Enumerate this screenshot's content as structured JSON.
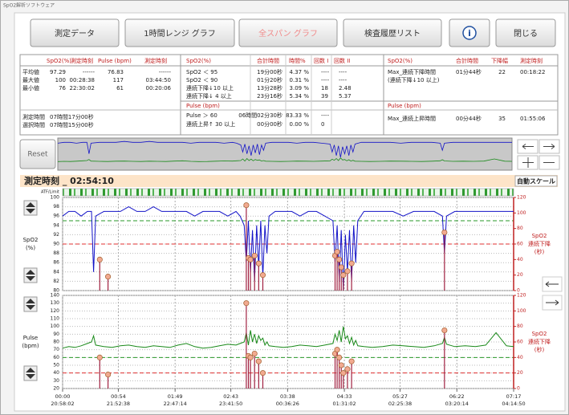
{
  "window_title": "SpO2解析ソフトウェア",
  "toolbar": {
    "buttons": [
      "測定データ",
      "1時間レンジ グラフ",
      "全スパン グラフ",
      "検査履歴リスト",
      "i",
      "閉じる"
    ],
    "active": 2
  },
  "summary": {
    "left": {
      "headers": [
        "SpO2(%)",
        "測定時刻",
        "Pulse (bpm)",
        "測定時刻"
      ],
      "rows": [
        [
          "平均値",
          "97.29",
          "------",
          "76.83",
          "------"
        ],
        [
          "最大値",
          "100",
          "00:28:38",
          "117",
          "03:44:50"
        ],
        [
          "最小値",
          "76",
          "22:30:02",
          "61",
          "00:20:06"
        ]
      ],
      "duration_rows": [
        [
          "測定時間",
          "07時間17分00秒"
        ],
        [
          "選択時間",
          "07時間15分00秒"
        ]
      ]
    },
    "middle": {
      "headers": [
        "SpO2(%)",
        "合計時間",
        "時間%",
        "回数 I",
        "回数 II"
      ],
      "rows": [
        [
          "SpO2 ＜ 95",
          "19分00秒",
          "4.37 %",
          "----",
          "----"
        ],
        [
          "SpO2 ＜ 90",
          "01分20秒",
          "0.31 %",
          "----",
          "----"
        ],
        [
          "連続下降↓10 以上",
          "13分28秒",
          "3.09 %",
          "18",
          "2.48"
        ],
        [
          "連続下降↓ 4 以上",
          "23分16秒",
          "5.34 %",
          "39",
          "5.37"
        ]
      ],
      "pulse_header": "Pulse (bpm)",
      "pulse_rows": [
        [
          "Pulse ＞ 60",
          "06時間02分30秒",
          "83.33 %",
          "----"
        ],
        [
          "連続上昇↑ 30 以上",
          "00分00秒",
          "0.00 %",
          "0"
        ]
      ]
    },
    "right": {
      "headers": [
        "SpO2(%)",
        "合計時間",
        "下降幅",
        "測定時刻"
      ],
      "rows": [
        [
          "Max_連続下降時間",
          "01分44秒",
          "22",
          "00:18:22"
        ]
      ],
      "note": "(連続下降↓10 以上)",
      "pulse_header": "Pulse (bpm)",
      "pulse_rows": [
        [
          "Max_連続上昇時間",
          "00分44秒",
          "35",
          "01:55:06"
        ]
      ]
    }
  },
  "reset": "Reset",
  "cursor_time": "測定時刻 _ 02:54:10",
  "auto_scale": "自動スケール",
  "atf_label": "ATF/Limit",
  "x_axis": {
    "xlim": [
      0,
      437
    ],
    "xticks": [
      {
        "value": 0,
        "label": "00:00"
      },
      {
        "value": 54,
        "label": "00:54"
      },
      {
        "value": 109,
        "label": "01:49"
      },
      {
        "value": 163,
        "label": "02:43"
      },
      {
        "value": 218,
        "label": "03:38"
      },
      {
        "value": 273,
        "label": "04:33"
      },
      {
        "value": 327,
        "label": "05:27"
      },
      {
        "value": 382,
        "label": "06:22"
      },
      {
        "value": 437,
        "label": "07:17"
      }
    ],
    "clock_labels": [
      "20:58:02",
      "21:52:38",
      "22:47:14",
      "23:41:50",
      "00:36:26",
      "01:31:02",
      "02:25:38",
      "03:20:14",
      "04:14:50"
    ]
  },
  "chart_data": [
    {
      "type": "line",
      "y_label": [
        "SpO2",
        "(%)"
      ],
      "y2_label": [
        "SpO2",
        "連続下降",
        "(秒)"
      ],
      "ylim": [
        80,
        100
      ],
      "yticks": [
        100,
        98,
        96,
        94,
        92,
        90,
        88,
        86,
        84,
        82,
        80
      ],
      "y2lim": [
        0,
        120
      ],
      "y2ticks": [
        120,
        100,
        80,
        60,
        40,
        20,
        0
      ],
      "grid": true,
      "thresholds": [
        {
          "value": 95,
          "color": "#2a9a2a"
        },
        {
          "value": 90,
          "color": "#e03030"
        }
      ],
      "x": [
        0,
        6,
        12,
        18,
        24,
        28,
        30,
        32,
        40,
        48,
        56,
        64,
        72,
        80,
        88,
        96,
        104,
        112,
        120,
        128,
        136,
        144,
        152,
        160,
        168,
        172,
        176,
        178,
        180,
        182,
        184,
        186,
        188,
        190,
        192,
        194,
        196,
        198,
        200,
        206,
        214,
        222,
        230,
        238,
        246,
        254,
        262,
        264,
        266,
        268,
        270,
        272,
        274,
        276,
        278,
        280,
        282,
        284,
        286,
        292,
        300,
        310,
        320,
        330,
        340,
        350,
        360,
        368,
        370,
        372,
        380,
        390,
        400,
        410,
        420,
        430,
        437
      ],
      "series": [
        {
          "color": "#1414c8",
          "values": [
            96,
            97,
            97,
            96,
            97,
            97,
            84,
            96,
            97,
            97,
            97,
            98,
            97,
            97,
            98,
            97,
            97,
            97,
            97,
            96,
            97,
            97,
            97,
            96,
            97,
            96,
            94,
            86,
            95,
            84,
            93,
            82,
            94,
            85,
            95,
            83,
            94,
            88,
            96,
            97,
            97,
            97,
            96,
            97,
            97,
            96,
            95,
            86,
            94,
            82,
            93,
            80,
            92,
            84,
            93,
            82,
            94,
            86,
            95,
            97,
            97,
            97,
            97,
            96,
            97,
            97,
            97,
            96,
            88,
            96,
            97,
            97,
            97,
            97,
            97,
            97,
            97
          ]
        }
      ],
      "events": {
        "axis": "y2",
        "color": "#a02040",
        "marker_color": "#f2aa90",
        "x": [
          36,
          44,
          178,
          180,
          182,
          186,
          190,
          194,
          264,
          266,
          268,
          270,
          272,
          276,
          280,
          370
        ],
        "values": [
          40,
          18,
          110,
          42,
          40,
          45,
          35,
          20,
          45,
          50,
          40,
          30,
          20,
          25,
          35,
          75
        ]
      }
    },
    {
      "type": "line",
      "y_label": [
        "Pulse",
        "(bpm)"
      ],
      "y2_label": [
        "SpO2",
        "連続下降",
        "(秒)"
      ],
      "ylim": [
        20,
        140
      ],
      "yticks": [
        140,
        130,
        120,
        110,
        100,
        90,
        80,
        70,
        60,
        50,
        40,
        30,
        20
      ],
      "y2lim": [
        0,
        120
      ],
      "y2ticks": [
        120,
        100,
        80,
        60,
        40,
        20,
        0
      ],
      "grid": true,
      "thresholds": [
        {
          "value": 60,
          "color": "#2a9a2a"
        },
        {
          "value": 40,
          "color": "#e03030"
        }
      ],
      "x": [
        0,
        6,
        12,
        18,
        24,
        28,
        30,
        32,
        40,
        48,
        56,
        64,
        72,
        80,
        88,
        96,
        104,
        112,
        120,
        128,
        136,
        144,
        152,
        160,
        168,
        172,
        176,
        178,
        180,
        182,
        184,
        186,
        188,
        190,
        192,
        194,
        196,
        198,
        200,
        206,
        214,
        222,
        230,
        238,
        246,
        254,
        262,
        264,
        266,
        268,
        270,
        272,
        274,
        276,
        278,
        280,
        282,
        284,
        286,
        292,
        300,
        310,
        320,
        330,
        340,
        350,
        360,
        368,
        370,
        372,
        380,
        390,
        400,
        410,
        420,
        430,
        437
      ],
      "series": [
        {
          "color": "#1a8a1a",
          "values": [
            72,
            74,
            73,
            75,
            78,
            80,
            88,
            76,
            74,
            73,
            75,
            76,
            74,
            73,
            75,
            74,
            73,
            76,
            78,
            74,
            72,
            73,
            75,
            77,
            76,
            78,
            80,
            92,
            76,
            95,
            80,
            90,
            78,
            88,
            82,
            85,
            76,
            80,
            75,
            74,
            73,
            74,
            76,
            75,
            74,
            76,
            78,
            90,
            82,
            95,
            80,
            100,
            84,
            88,
            78,
            86,
            76,
            82,
            75,
            74,
            73,
            74,
            76,
            75,
            74,
            73,
            75,
            78,
            86,
            77,
            74,
            75,
            74,
            76,
            92,
            75,
            74
          ]
        }
      ],
      "events": {
        "axis": "y2",
        "color": "#a02040",
        "marker_color": "#f2aa90",
        "x": [
          36,
          44,
          178,
          180,
          182,
          186,
          190,
          194,
          264,
          266,
          268,
          270,
          272,
          276,
          280,
          370
        ],
        "values": [
          40,
          18,
          110,
          42,
          40,
          45,
          35,
          20,
          45,
          50,
          40,
          30,
          20,
          25,
          35,
          75
        ]
      }
    }
  ]
}
